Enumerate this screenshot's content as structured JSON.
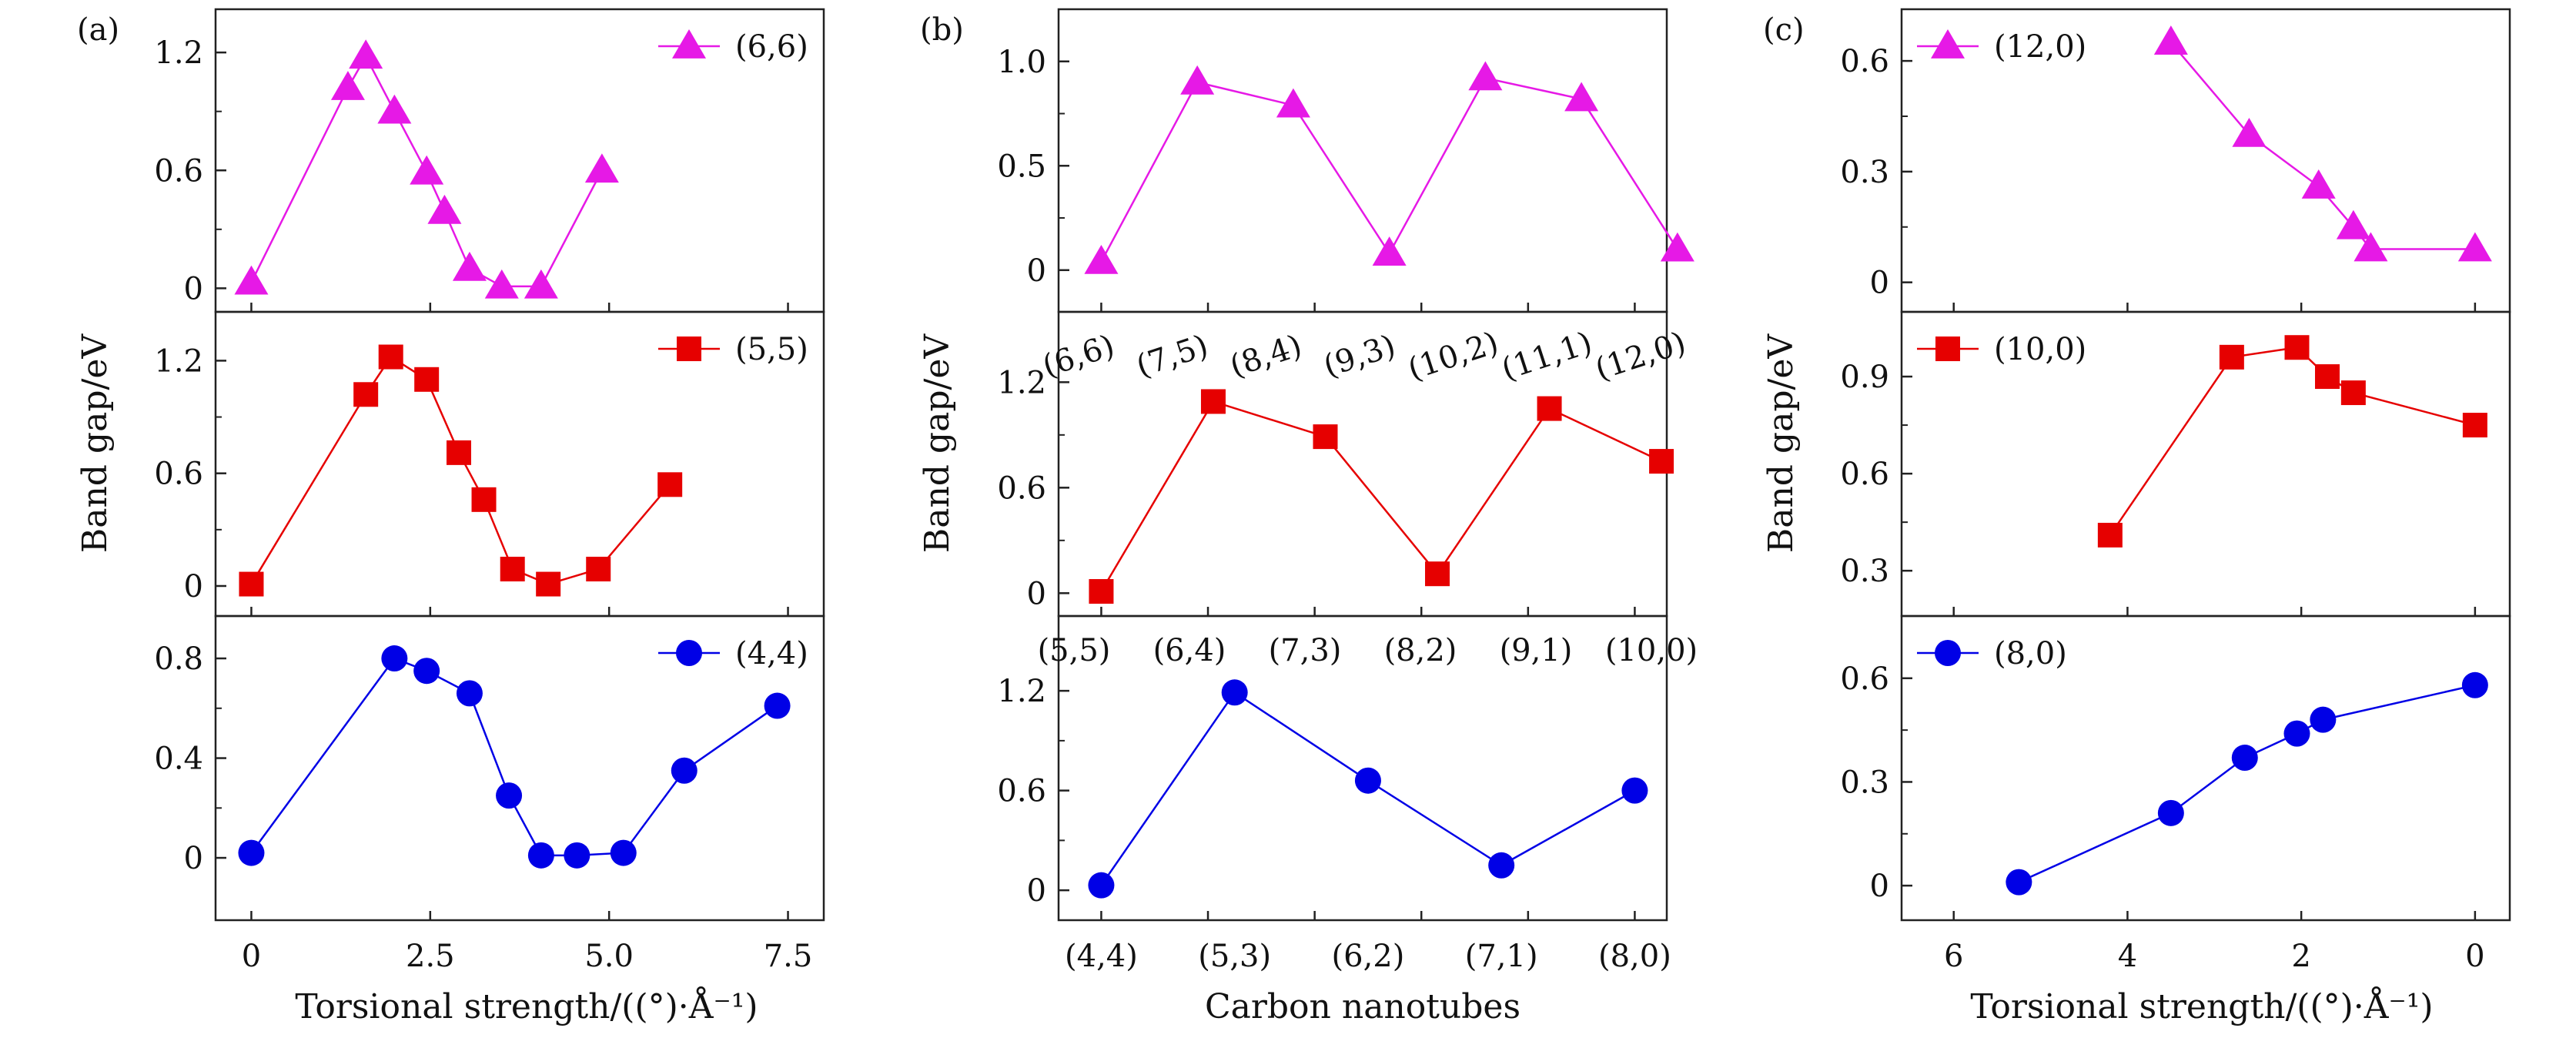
{
  "figure": {
    "panels": [
      {
        "letter": "(a)",
        "ylabel": "Band gap/eV",
        "xlabel": "Torsional strength/((°)·Å⁻¹)"
      },
      {
        "letter": "(b)",
        "ylabel": "Band gap/eV",
        "xlabel": "Carbon nanotubes"
      },
      {
        "letter": "(c)",
        "ylabel": "Band gap/eV",
        "xlabel": "Torsional strength/((°)·Å⁻¹)"
      }
    ]
  },
  "chart_data": [
    {
      "type": "line",
      "panel": "(a)",
      "xlabel": "Torsional strength/((°)·Å⁻¹)",
      "ylabel": "Band gap/eV",
      "xlim": [
        -0.5,
        8.0
      ],
      "xticks": [
        0,
        2.5,
        5.0,
        7.5
      ],
      "xtick_labels": [
        "0",
        "2.5",
        "5.0",
        "7.5"
      ],
      "subplots": [
        {
          "series": [
            {
              "name": "(6,6)",
              "color": "#e619e6",
              "marker": "triangle",
              "x": [
                0,
                1.35,
                1.6,
                2.0,
                2.45,
                2.7,
                3.05,
                3.5,
                4.05,
                4.9
              ],
              "y": [
                0.03,
                1.02,
                1.18,
                0.9,
                0.59,
                0.39,
                0.1,
                0.01,
                0.01,
                0.6
              ]
            }
          ],
          "ylim": [
            -0.12,
            1.42
          ],
          "yticks": [
            0,
            0.6,
            1.2
          ],
          "ytick_labels": [
            "0",
            "0.6",
            "1.2"
          ],
          "legend": "top-right"
        },
        {
          "series": [
            {
              "name": "(5,5)",
              "color": "#e60000",
              "marker": "square",
              "x": [
                0,
                1.6,
                1.95,
                2.45,
                2.9,
                3.25,
                3.65,
                4.15,
                4.85,
                5.85
              ],
              "y": [
                0.01,
                1.02,
                1.22,
                1.1,
                0.71,
                0.46,
                0.09,
                0.01,
                0.09,
                0.54
              ]
            }
          ],
          "ylim": [
            -0.16,
            1.46
          ],
          "yticks": [
            0,
            0.6,
            1.2
          ],
          "ytick_labels": [
            "0",
            "0.6",
            "1.2"
          ],
          "legend": "top-right"
        },
        {
          "series": [
            {
              "name": "(4,4)",
              "color": "#0000e6",
              "marker": "circle",
              "x": [
                0,
                2.0,
                2.45,
                3.05,
                3.6,
                4.05,
                4.55,
                5.2,
                6.05,
                7.35
              ],
              "y": [
                0.02,
                0.8,
                0.75,
                0.66,
                0.25,
                0.01,
                0.01,
                0.02,
                0.35,
                0.61
              ]
            }
          ],
          "ylim": [
            -0.25,
            0.97
          ],
          "yticks": [
            0,
            0.4,
            0.8
          ],
          "ytick_labels": [
            "0",
            "0.4",
            "0.8"
          ],
          "legend": "top-right"
        }
      ]
    },
    {
      "type": "line",
      "panel": "(b)",
      "xlabel": "Carbon nanotubes",
      "ylabel": "Band gap/eV",
      "xlim": [
        -0.8,
        10.6
      ],
      "xticks": [
        0,
        2.0,
        4.0,
        6.0,
        8.0,
        10.0
      ],
      "xtick_labels": [
        "(4,4)",
        "(5,3)",
        "(6,2)",
        "(7,1)",
        "(8,0)"
      ],
      "xtick_label_positions": [
        0,
        2.5,
        5.0,
        7.5,
        10.0
      ],
      "subplots": [
        {
          "series": [
            {
              "name": "",
              "color": "#e619e6",
              "marker": "triangle",
              "x": [
                0,
                1.8,
                3.6,
                5.4,
                7.2,
                9.0,
                10.8
              ],
              "y": [
                0.04,
                0.9,
                0.79,
                0.08,
                0.92,
                0.82,
                0.1
              ]
            }
          ],
          "ylim": [
            -0.2,
            1.25
          ],
          "yticks": [
            0,
            0.5,
            1.0
          ],
          "ytick_labels": [
            "0",
            "0.5",
            "1.0"
          ]
        },
        {
          "series": [
            {
              "name": "",
              "color": "#e60000",
              "marker": "square",
              "x": [
                0,
                2.1,
                4.2,
                6.3,
                8.4,
                10.5
              ],
              "y": [
                0.01,
                1.09,
                0.89,
                0.11,
                1.05,
                0.75
              ]
            }
          ],
          "ylim": [
            -0.13,
            1.6
          ],
          "yticks": [
            0,
            0.6,
            1.2
          ],
          "ytick_labels": [
            "0",
            "0.6",
            "1.2"
          ],
          "annotations": [
            "(6,6)",
            "(7,5)",
            "(8,4)",
            "(9,3)",
            "(10,2)",
            "(11,1)",
            "(12,0)"
          ]
        },
        {
          "series": [
            {
              "name": "",
              "color": "#0000e6",
              "marker": "circle",
              "x": [
                0,
                2.5,
                5.0,
                7.5,
                10.0
              ],
              "y": [
                0.03,
                1.19,
                0.66,
                0.15,
                0.6
              ]
            }
          ],
          "ylim": [
            -0.18,
            1.65
          ],
          "yticks": [
            0,
            0.6,
            1.2
          ],
          "ytick_labels": [
            "0",
            "0.6",
            "1.2"
          ],
          "annotations": [
            "(5,5)",
            "(6,4)",
            "(7,3)",
            "(8,2)",
            "(9,1)",
            "(10,0)"
          ]
        }
      ]
    },
    {
      "type": "line",
      "panel": "(c)",
      "xlabel": "Torsional strength/((°)·Å⁻¹)",
      "ylabel": "Band gap/eV",
      "xlim": [
        6.6,
        -0.4
      ],
      "xticks": [
        6,
        4,
        2,
        0
      ],
      "xtick_labels": [
        "6",
        "4",
        "2",
        "0"
      ],
      "subplots": [
        {
          "series": [
            {
              "name": "(12,0)",
              "color": "#e619e6",
              "marker": "triangle",
              "x": [
                3.5,
                2.6,
                1.8,
                1.4,
                1.2,
                0
              ],
              "y": [
                0.65,
                0.4,
                0.26,
                0.15,
                0.09,
                0.09
              ]
            }
          ],
          "ylim": [
            -0.08,
            0.74
          ],
          "yticks": [
            0,
            0.3,
            0.6
          ],
          "ytick_labels": [
            "0",
            "0.3",
            "0.6"
          ],
          "legend": "top-left"
        },
        {
          "series": [
            {
              "name": "(10,0)",
              "color": "#e60000",
              "marker": "square",
              "x": [
                4.2,
                2.8,
                2.05,
                1.7,
                1.4,
                0
              ],
              "y": [
                0.41,
                0.96,
                0.99,
                0.9,
                0.85,
                0.75
              ]
            }
          ],
          "ylim": [
            0.16,
            1.1
          ],
          "yticks": [
            0.3,
            0.6,
            0.9
          ],
          "ytick_labels": [
            "0.3",
            "0.6",
            "0.9"
          ],
          "legend": "top-left"
        },
        {
          "series": [
            {
              "name": "(8,0)",
              "color": "#0000e6",
              "marker": "circle",
              "x": [
                5.25,
                3.5,
                2.65,
                2.05,
                1.75,
                0
              ],
              "y": [
                0.01,
                0.21,
                0.37,
                0.44,
                0.48,
                0.58
              ]
            }
          ],
          "ylim": [
            -0.1,
            0.78
          ],
          "yticks": [
            0,
            0.3,
            0.6
          ],
          "ytick_labels": [
            "0",
            "0.3",
            "0.6"
          ],
          "legend": "top-left"
        }
      ]
    }
  ]
}
